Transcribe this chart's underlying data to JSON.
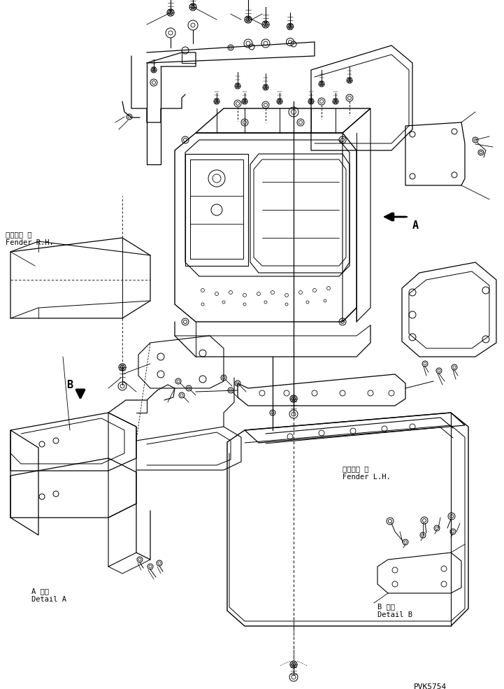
{
  "bg_color": "#ffffff",
  "line_color": "#000000",
  "title_text": "PVK5754",
  "labels": {
    "fender_rh_ja": "フェンダ 右",
    "fender_rh_en": "Fender R.H.",
    "fender_lh_ja": "フェンダ 左",
    "fender_lh_en": "Fender L.H.",
    "detail_a_ja": "A 詳細",
    "detail_a_en": "Detail A",
    "detail_b_ja": "B 詳細",
    "detail_b_en": "Detail B",
    "arrow_a": "A",
    "arrow_b": "B"
  },
  "figsize": [
    7.21,
    9.85
  ],
  "dpi": 100
}
